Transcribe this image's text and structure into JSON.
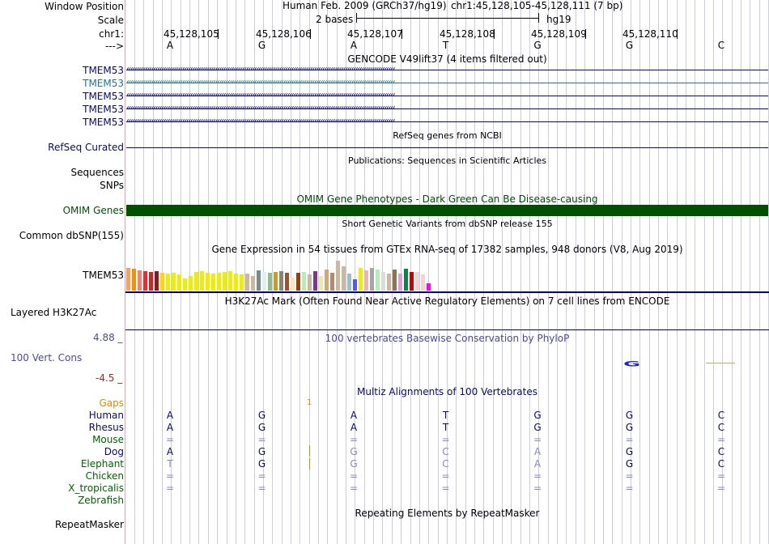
{
  "header": {
    "window_position_label": "Window Position",
    "scale_label": "Scale",
    "chr_label": "chr1:",
    "strand_label": "--->",
    "assembly": "Human Feb. 2009 (GRCh37/hg19)",
    "position": "chr1:45,128,105-45,128,111 (7 bp)",
    "scale_text": "2 bases",
    "db": "hg19",
    "coordinates": [
      "45,128,105",
      "45,128,106",
      "45,128,107",
      "45,128,108",
      "45,128,109",
      "45,128,110"
    ],
    "sequence": [
      "A",
      "G",
      "A",
      "T",
      "G",
      "G",
      "C"
    ]
  },
  "tracks": {
    "gencode": {
      "title": "GENCODE V49lift37 (4 items filtered out)",
      "items": [
        "TMEM53",
        "TMEM53",
        "TMEM53",
        "TMEM53",
        "TMEM53"
      ],
      "colors": [
        "#0a0a6e",
        "#1e7896",
        "#0a0a6e",
        "#0a0a6e",
        "#0a0a6e"
      ]
    },
    "refseq": {
      "title": "RefSeq genes from NCBI",
      "label": "RefSeq Curated"
    },
    "publications": {
      "title": "Publications: Sequences in Scientific Articles",
      "labels": [
        "Sequences",
        "SNPs"
      ]
    },
    "omim": {
      "title": "OMIM Gene Phenotypes - Dark Green Can Be Disease-causing",
      "label": "OMIM Genes",
      "color": "#005000"
    },
    "dbsnp": {
      "title": "Short Genetic Variants from dbSNP release 155",
      "label": "Common dbSNP(155)"
    },
    "gtex": {
      "title": "Gene Expression in 54 tissues from GTEx RNA-seq of 17382 samples, 948 donors (V8, Aug 2019)",
      "label": "TMEM53",
      "bars": [
        {
          "v": 28,
          "c": "#f4a460"
        },
        {
          "v": 27,
          "c": "#ff8c00"
        },
        {
          "v": 25,
          "c": "#f08080"
        },
        {
          "v": 24,
          "c": "#ee2c2c"
        },
        {
          "v": 23,
          "c": "#cd2626"
        },
        {
          "v": 24,
          "c": "#8b1a1a"
        },
        {
          "v": 22,
          "c": "#ffd700"
        },
        {
          "v": 21,
          "c": "#eeee00"
        },
        {
          "v": 22,
          "c": "#eeee00"
        },
        {
          "v": 20,
          "c": "#eeee00"
        },
        {
          "v": 15,
          "c": "#eeee00"
        },
        {
          "v": 18,
          "c": "#eeee00"
        },
        {
          "v": 23,
          "c": "#eeee00"
        },
        {
          "v": 24,
          "c": "#eeee00"
        },
        {
          "v": 22,
          "c": "#eeee00"
        },
        {
          "v": 21,
          "c": "#eeee00"
        },
        {
          "v": 22,
          "c": "#eeee00"
        },
        {
          "v": 23,
          "c": "#eeee00"
        },
        {
          "v": 24,
          "c": "#eeee00"
        },
        {
          "v": 21,
          "c": "#eeee00"
        },
        {
          "v": 20,
          "c": "#eeee00"
        },
        {
          "v": 21,
          "c": "#cdb79e"
        },
        {
          "v": 18,
          "c": "#cdb79e"
        },
        {
          "v": 25,
          "c": "#7a8b8b"
        },
        {
          "v": 23,
          "c": "#e0eeee"
        },
        {
          "v": 22,
          "c": "#8fbc8f"
        },
        {
          "v": 23,
          "c": "#cd9b1d"
        },
        {
          "v": 24,
          "c": "#8b8378"
        },
        {
          "v": 22,
          "c": "#a0522d"
        },
        {
          "v": 16,
          "c": "#ffe4b5"
        },
        {
          "v": 22,
          "c": "#8b4513"
        },
        {
          "v": 23,
          "c": "#b4eeb4"
        },
        {
          "v": 20,
          "c": "#cdb79e"
        },
        {
          "v": 24,
          "c": "#7a378b"
        },
        {
          "v": 18,
          "c": "#eee8aa"
        },
        {
          "v": 26,
          "c": "#cdaa7d"
        },
        {
          "v": 22,
          "c": "#b38a6d"
        },
        {
          "v": 37,
          "c": "#cdb79e"
        },
        {
          "v": 30,
          "c": "#cdb79e"
        },
        {
          "v": 21,
          "c": "#9ac0cd"
        },
        {
          "v": 14,
          "c": "#5555ff"
        },
        {
          "v": 28,
          "c": "#eeee00"
        },
        {
          "v": 25,
          "c": "#eeb4b4"
        },
        {
          "v": 28,
          "c": "#a6a6a6"
        },
        {
          "v": 26,
          "c": "#b4eeb4"
        },
        {
          "v": 23,
          "c": "#dcdcdc"
        },
        {
          "v": 21,
          "c": "#cdb79e"
        },
        {
          "v": 26,
          "c": "#8b7355"
        },
        {
          "v": 21,
          "c": "#dda0dd"
        },
        {
          "v": 27,
          "c": "#008b45"
        },
        {
          "v": 23,
          "c": "#cd0000"
        },
        {
          "v": 23,
          "c": "#eed5d2"
        },
        {
          "v": 20,
          "c": "#eed5d2"
        },
        {
          "v": 9,
          "c": "#ff00ff"
        }
      ]
    },
    "h3k27ac": {
      "title": "H3K27Ac Mark (Often Found Near Active Regulatory Elements) on 7 cell lines from ENCODE",
      "label": "Layered H3K27Ac"
    },
    "phylop": {
      "title": "100 vertebrates Basewise Conservation by PhyloP",
      "label": "100 Vert. Cons",
      "max": "4.88 _",
      "min": "-4.5 _",
      "glyph": "G"
    },
    "multiz": {
      "title": "Multiz Alignments of 100 Vertebrates",
      "gaps_label": "Gaps",
      "gap_mark": "1",
      "species": [
        {
          "name": "Human",
          "color": "#0a0a6e",
          "bases": [
            "A",
            "G",
            "A",
            "T",
            "G",
            "G",
            "C"
          ],
          "colors": [
            "#0a0a6e",
            "#0a0a6e",
            "#0a0a6e",
            "#0a0a6e",
            "#0a0a6e",
            "#0a0a6e",
            "#0a0a6e"
          ]
        },
        {
          "name": "Rhesus",
          "color": "#0a0a6e",
          "bases": [
            "A",
            "G",
            "A",
            "T",
            "G",
            "G",
            "C"
          ],
          "colors": [
            "#0a0a6e",
            "#0a0a6e",
            "#0a0a6e",
            "#0a0a6e",
            "#0a0a6e",
            "#0a0a6e",
            "#0a0a6e"
          ]
        },
        {
          "name": "Mouse",
          "color": "#006400",
          "bases": [
            "=",
            "=",
            "=",
            "=",
            "=",
            "=",
            "="
          ],
          "colors": [
            "#8888cc",
            "#8888cc",
            "#8888cc",
            "#8888cc",
            "#8888cc",
            "#8888cc",
            "#8888cc"
          ]
        },
        {
          "name": "Dog",
          "color": "#0a0a6e",
          "bases": [
            "A",
            "G",
            "G",
            "C",
            "A",
            "G",
            "C"
          ],
          "colors": [
            "#0a0a6e",
            "#0a0a6e",
            "#8888cc",
            "#8888cc",
            "#8888cc",
            "#0a0a6e",
            "#0a0a6e"
          ]
        },
        {
          "name": "Elephant",
          "color": "#006400",
          "bases": [
            "T",
            "G",
            "G",
            "C",
            "A",
            "G",
            "C"
          ],
          "colors": [
            "#8888cc",
            "#0a0a6e",
            "#8888cc",
            "#8888cc",
            "#8888cc",
            "#0a0a6e",
            "#0a0a6e"
          ]
        },
        {
          "name": "Chicken",
          "color": "#006400",
          "bases": [
            "=",
            "=",
            "=",
            "=",
            "=",
            "=",
            "="
          ],
          "colors": [
            "#8888cc",
            "#8888cc",
            "#8888cc",
            "#8888cc",
            "#8888cc",
            "#8888cc",
            "#8888cc"
          ]
        },
        {
          "name": "X_tropicalis",
          "color": "#006400",
          "bases": [
            "=",
            "=",
            "=",
            "=",
            "=",
            "=",
            "="
          ],
          "colors": [
            "#8888cc",
            "#8888cc",
            "#8888cc",
            "#8888cc",
            "#8888cc",
            "#8888cc",
            "#8888cc"
          ]
        },
        {
          "name": "Zebrafish",
          "color": "#006400",
          "bases": [],
          "colors": []
        }
      ]
    },
    "repeatmasker": {
      "title": "Repeating Elements by RepeatMasker",
      "label": "RepeatMasker"
    }
  }
}
